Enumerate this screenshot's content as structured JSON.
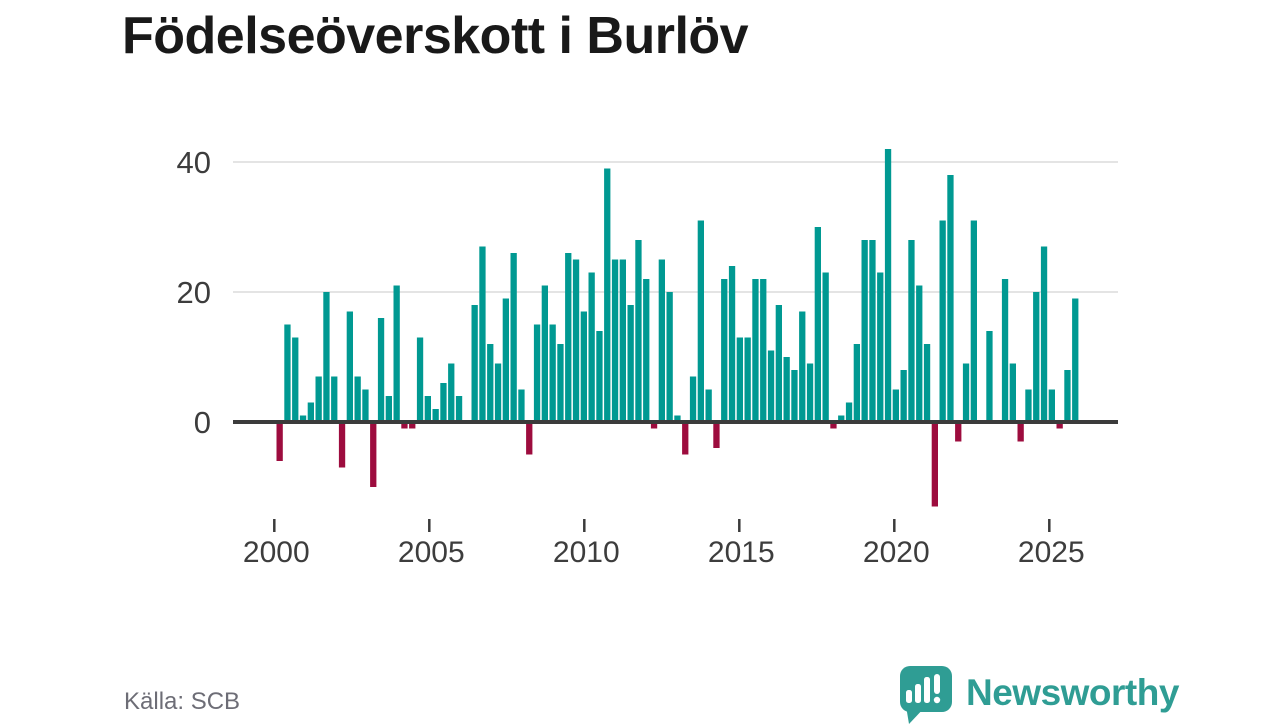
{
  "title": "Födelseöverskott i Burlöv",
  "source": "Källa: SCB",
  "logo": {
    "wordmark": "Newsworthy",
    "icon": "speech-bubble-bar-chart-icon"
  },
  "colors": {
    "positive": "#009992",
    "negative": "#9d0c3e",
    "gridline": "#e4e4e4",
    "zero_line": "#3b3b3b",
    "axis_text": "#3d3d3d",
    "title_text": "#191919",
    "source_text": "#6d6d76",
    "logo_teal": "#2f9d94"
  },
  "chart_data": {
    "type": "bar",
    "title": "Födelseöverskott i Burlöv",
    "frequency": "quarterly",
    "x_start": {
      "year": 2000,
      "quarter": 1
    },
    "x_end": {
      "year": 2025,
      "quarter": 3
    },
    "values": [
      -6,
      15,
      13,
      1,
      3,
      7,
      20,
      7,
      -7,
      17,
      7,
      5,
      -10,
      16,
      4,
      21,
      -1,
      -1,
      13,
      4,
      2,
      6,
      9,
      4,
      0,
      18,
      27,
      12,
      9,
      19,
      26,
      5,
      -5,
      15,
      21,
      15,
      12,
      26,
      25,
      17,
      23,
      14,
      39,
      25,
      25,
      18,
      28,
      22,
      -1,
      25,
      20,
      1,
      -5,
      7,
      31,
      5,
      -4,
      22,
      24,
      13,
      13,
      22,
      22,
      11,
      18,
      10,
      8,
      17,
      9,
      30,
      23,
      -1,
      1,
      3,
      12,
      28,
      28,
      23,
      42,
      5,
      8,
      28,
      21,
      12,
      -13,
      31,
      38,
      -3,
      9,
      31,
      0,
      14,
      0,
      22,
      9,
      -3,
      5,
      20,
      27,
      5,
      -1,
      8,
      19
    ],
    "y_ticks": [
      0,
      20,
      40
    ],
    "y_tick_labels": [
      "0",
      "20",
      "40"
    ],
    "x_tick_years": [
      2000,
      2005,
      2010,
      2015,
      2020,
      2025
    ],
    "x_tick_labels": [
      "2000",
      "2005",
      "2010",
      "2015",
      "2020",
      "2025"
    ],
    "ylim": [
      -15,
      44
    ],
    "grid": "horizontal-only",
    "legend": "none",
    "ylabel": "",
    "xlabel": ""
  }
}
